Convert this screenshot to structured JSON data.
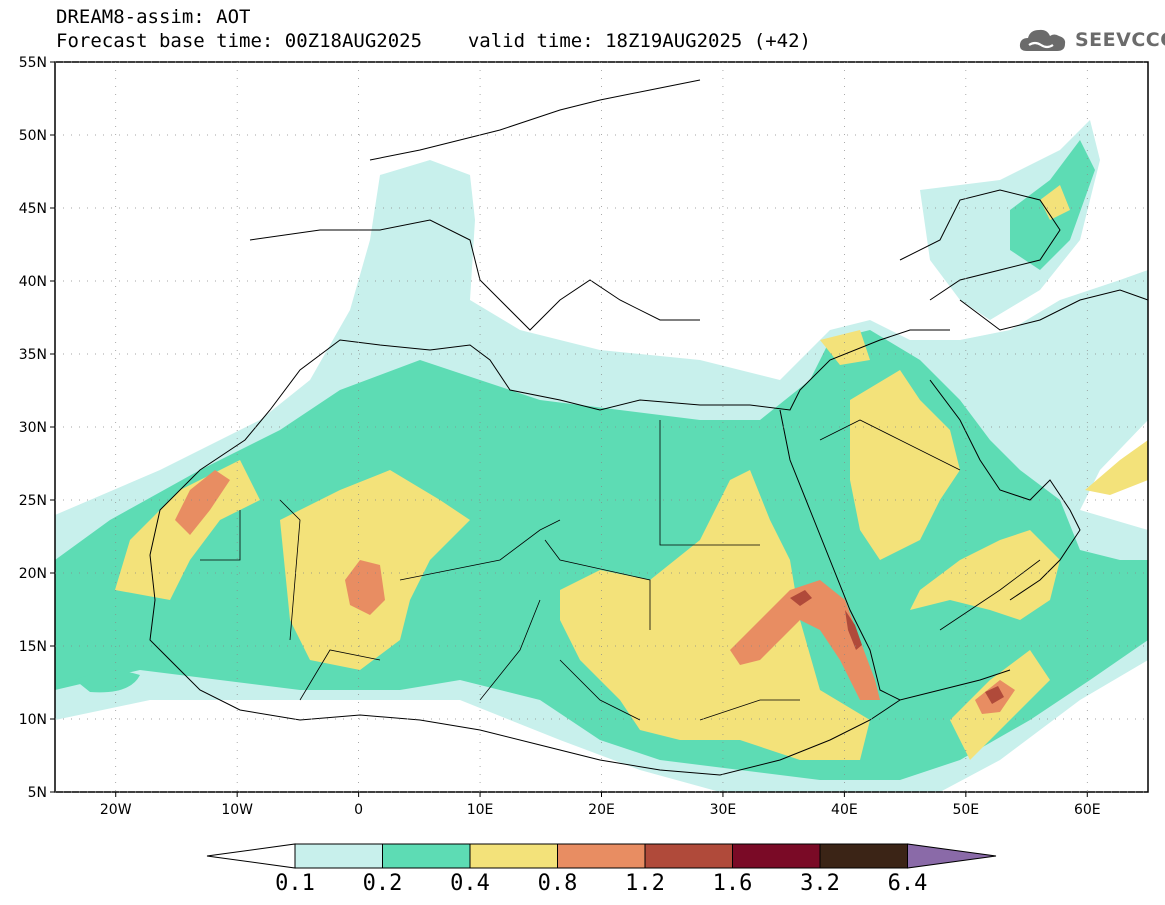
{
  "header": {
    "title_line1": "DREAM8-assim: AOT",
    "base_time_label": "Forecast base time: 00Z18AUG2025",
    "valid_time_label": "valid time: 18Z19AUG2025 (+42)"
  },
  "logo": {
    "text": "SEEVCCC",
    "icon": "cloud-icon"
  },
  "map": {
    "lon_range": [
      -25,
      65
    ],
    "lat_range": [
      5,
      55
    ],
    "lat_ticks": [
      "55N",
      "50N",
      "45N",
      "40N",
      "35N",
      "30N",
      "25N",
      "20N",
      "15N",
      "10N",
      "5N"
    ],
    "lon_ticks": [
      "20W",
      "10W",
      "0",
      "10E",
      "20E",
      "30E",
      "40E",
      "50E",
      "60E"
    ]
  },
  "colorbar": {
    "labels": [
      "0.1",
      "0.2",
      "0.4",
      "0.8",
      "1.2",
      "1.6",
      "3.2",
      "6.4"
    ],
    "colors": [
      "#c8f0ec",
      "#5ddcb4",
      "#f3e27a",
      "#e88d62",
      "#b04a3a",
      "#7a0a26",
      "#3b2416",
      "#8a6aa8"
    ]
  },
  "colors": {
    "aot_0_1": "#c8f0ec",
    "aot_0_2": "#5ddcb4",
    "aot_0_4": "#f3e27a",
    "aot_0_8": "#e88d62",
    "aot_1_2": "#b04a3a",
    "aot_1_6": "#7a0a26"
  }
}
